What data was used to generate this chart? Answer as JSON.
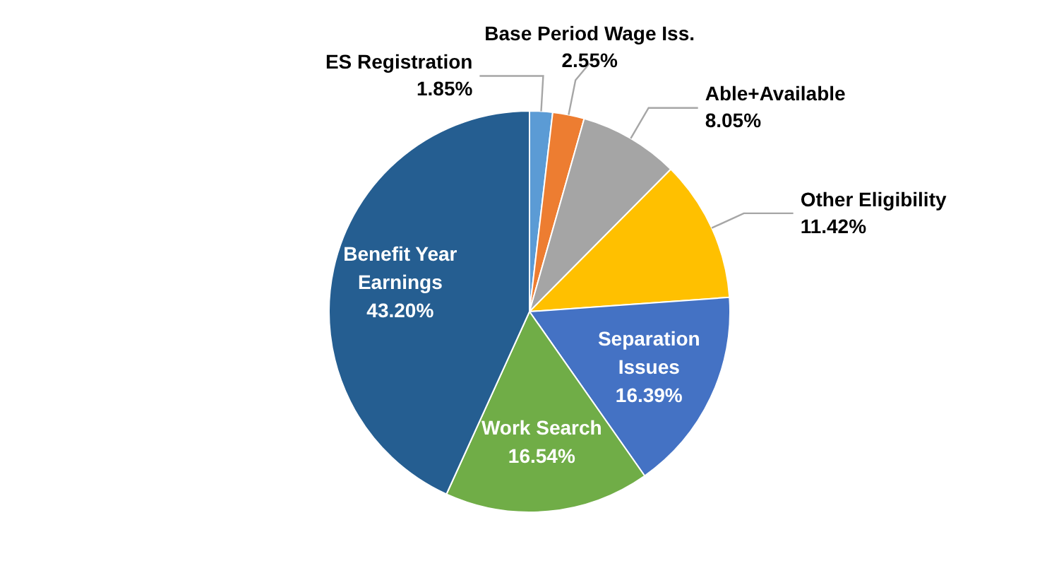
{
  "chart_data": {
    "type": "pie",
    "categories": [
      "ES Registration",
      "Base Period Wage Iss.",
      "Able+Available",
      "Other Eligibility",
      "Separation Issues",
      "Work Search",
      "Benefit Year Earnings"
    ],
    "values": [
      1.85,
      2.55,
      8.05,
      11.42,
      16.39,
      16.54,
      43.2
    ],
    "colors": [
      "#5b9bd5",
      "#ed7d31",
      "#a5a5a5",
      "#ffc000",
      "#4472c4",
      "#70ad47",
      "#255e91"
    ],
    "value_labels": [
      "1.85%",
      "2.55%",
      "8.05%",
      "11.42%",
      "16.39%",
      "16.54%",
      "43.20%"
    ]
  }
}
